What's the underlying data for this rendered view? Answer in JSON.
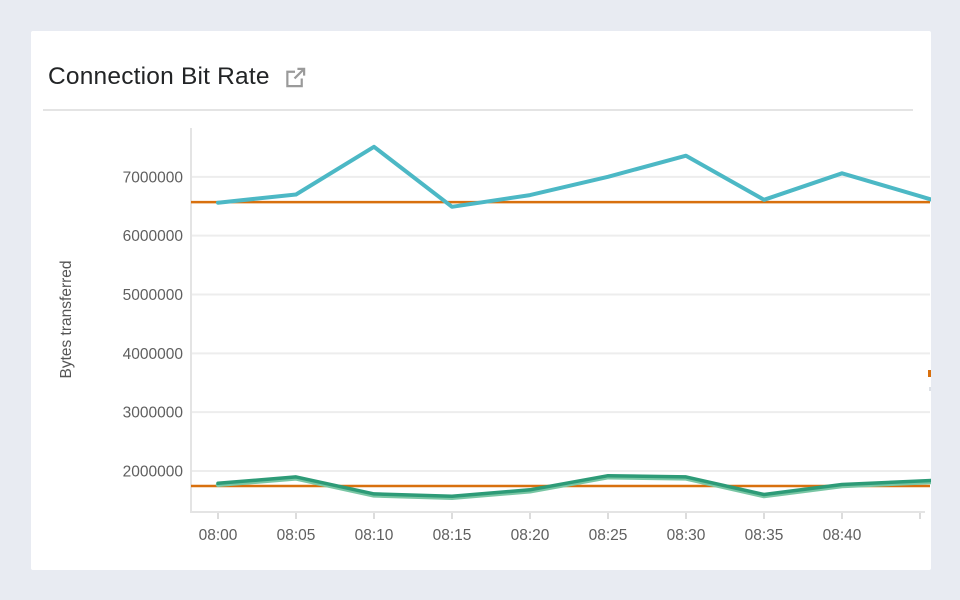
{
  "page": {
    "background_color": "#e8ebf2",
    "card_color": "#ffffff"
  },
  "header": {
    "title": "Connection Bit Rate",
    "external_link_icon": "external-link-icon",
    "icon_color": "#9a9a9a"
  },
  "chart_data": {
    "type": "line",
    "title": "Connection Bit Rate",
    "xlabel": "",
    "ylabel": "Bytes transferred",
    "grid": true,
    "legend": "none",
    "ylim": [
      1320000,
      7830000
    ],
    "y_ticks": [
      2000000,
      3000000,
      4000000,
      5000000,
      6000000,
      7000000
    ],
    "x_axis": {
      "labels": [
        "08:00",
        "08:05",
        "08:10",
        "08:15",
        "08:20",
        "08:25",
        "08:30",
        "08:35",
        "08:40"
      ],
      "unlabeled_trailing_ticks": 1
    },
    "series": [
      {
        "name": "teal-series",
        "color": "#4cb8c5",
        "values": [
          6560000,
          6700000,
          7510000,
          6490000,
          6690000,
          7000000,
          7360000,
          6610000,
          7060000,
          6670000
        ],
        "clipped_at_right_edge": true
      },
      {
        "name": "green-series",
        "color": "#2d9b77",
        "underlay_color": "#79c6a4",
        "values": [
          1790000,
          1900000,
          1610000,
          1570000,
          1680000,
          1920000,
          1900000,
          1600000,
          1770000,
          1830000
        ],
        "clipped_at_right_edge": true
      }
    ],
    "reference_lines": [
      {
        "name": "upper-reference-line",
        "color": "#d8700e",
        "value": 6570000
      },
      {
        "name": "lower-reference-line",
        "color": "#d8700e",
        "value": 1745000
      }
    ],
    "axis_style": {
      "axis_color": "#e4e4e4",
      "grid_color": "#ededed",
      "tick_color": "#dcdcdc",
      "tick_label_color": "#5f5f5f",
      "axis_title_color": "#555555"
    },
    "right_edge_artifacts": [
      {
        "name": "clipped-orange-mark",
        "color": "#d8700e"
      },
      {
        "name": "clipped-gray-mark",
        "color": "#dde1e7"
      }
    ]
  }
}
